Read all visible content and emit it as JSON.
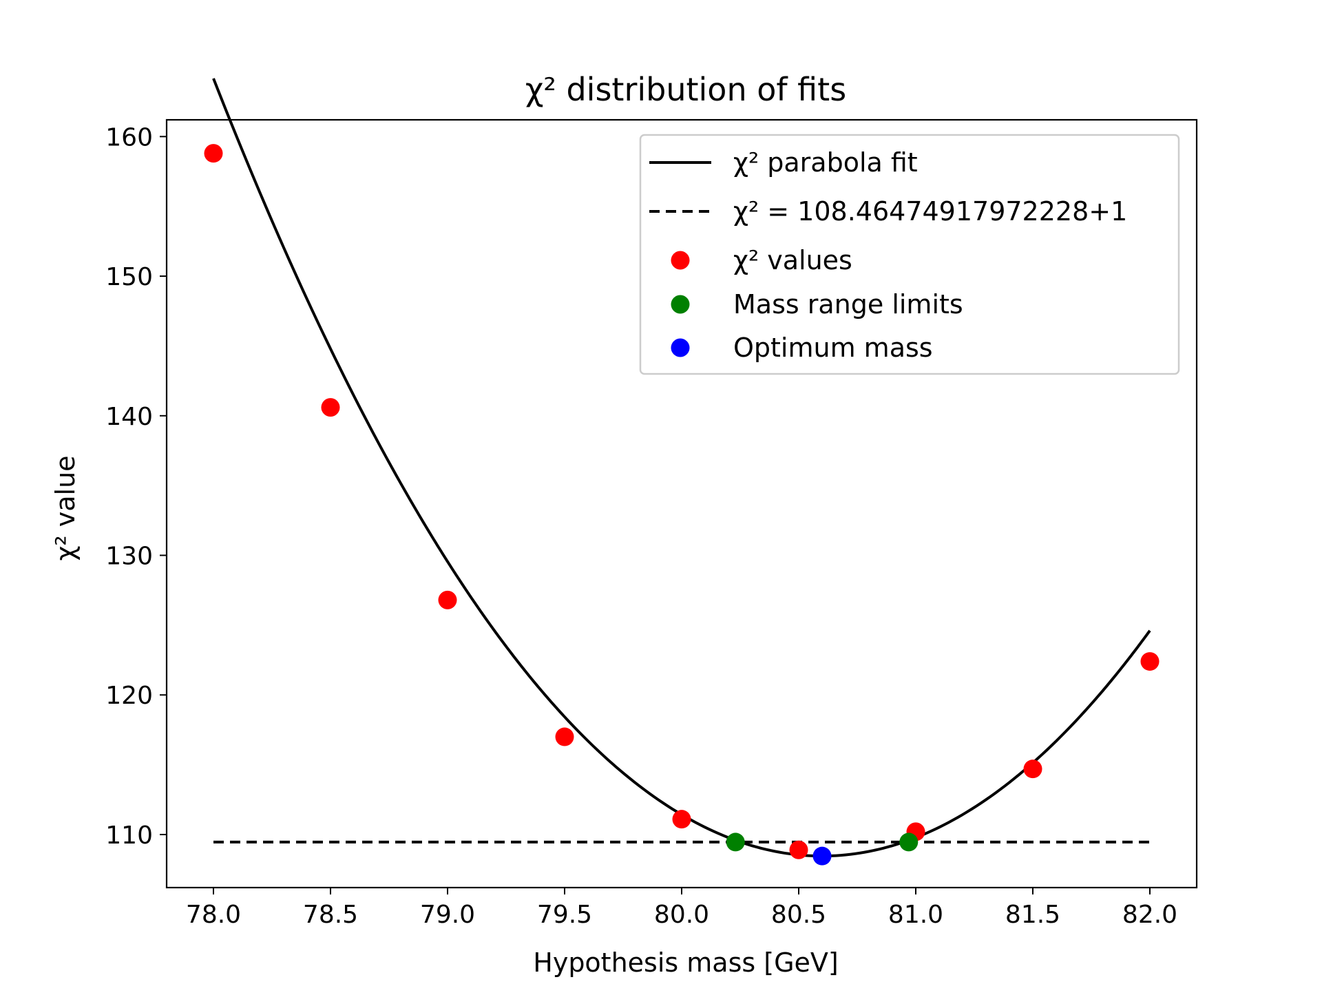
{
  "chart_data": {
    "type": "scatter",
    "title": "χ² distribution of fits",
    "xlabel": "Hypothesis mass [GeV]",
    "ylabel": "χ² value",
    "xlim": [
      77.8,
      82.2
    ],
    "ylim": [
      106.2,
      161.2
    ],
    "xticks": [
      78.0,
      78.5,
      79.0,
      79.5,
      80.0,
      80.5,
      81.0,
      81.5,
      82.0
    ],
    "xtick_labels": [
      "78.0",
      "78.5",
      "79.0",
      "79.5",
      "80.0",
      "80.5",
      "81.0",
      "81.5",
      "82.0"
    ],
    "yticks": [
      110,
      120,
      130,
      140,
      150,
      160
    ],
    "ytick_labels": [
      "110",
      "120",
      "130",
      "140",
      "150",
      "160"
    ],
    "grid": false,
    "legend_position": "top-right",
    "series": [
      {
        "name": "χ² parabola fit",
        "kind": "line",
        "style": "solid",
        "color": "#000000",
        "fit": {
          "x_min_at": 80.6,
          "y_min": 108.46,
          "a": 8.24
        },
        "x_range": [
          78.0,
          82.0
        ]
      },
      {
        "name": "χ² = 108.46474917972228+1",
        "kind": "line",
        "style": "dashed",
        "color": "#000000",
        "y": 109.46474917972228,
        "x_range": [
          78.0,
          82.0
        ]
      },
      {
        "name": "χ² values",
        "kind": "scatter",
        "color": "#ff0000",
        "x": [
          78.0,
          78.5,
          79.0,
          79.5,
          80.0,
          80.5,
          81.0,
          81.5,
          82.0
        ],
        "y": [
          158.8,
          140.6,
          126.8,
          117.0,
          111.1,
          108.9,
          110.2,
          114.7,
          122.4
        ]
      },
      {
        "name": "Mass range limits",
        "kind": "scatter",
        "color": "#008000",
        "x": [
          80.23,
          80.97
        ],
        "y": [
          109.46,
          109.46
        ]
      },
      {
        "name": "Optimum mass",
        "kind": "scatter",
        "color": "#0000ff",
        "x": [
          80.6
        ],
        "y": [
          108.46
        ]
      }
    ]
  }
}
